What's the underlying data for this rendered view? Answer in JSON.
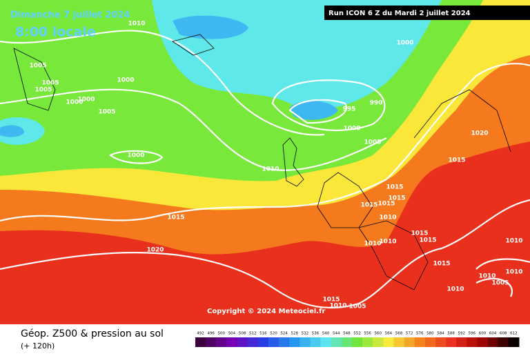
{
  "header": {
    "date": "Dimanche 7 juillet 2024",
    "time": "8:00 locale",
    "run": "Run ICON 6 Z du Mardi 2 juillet 2024"
  },
  "copyright": "Copyright © 2024 Meteociel.fr",
  "isobar_labels": [
    "1010",
    "1005",
    "1005",
    "1005",
    "1000",
    "1000",
    "1005",
    "1000",
    "1000",
    "1000",
    "995",
    "990",
    "1000",
    "1005",
    "1010",
    "1020",
    "1015",
    "1015",
    "1015",
    "1015",
    "1015",
    "1010",
    "1015",
    "1015",
    "1010",
    "1010",
    "1015",
    "1020",
    "1015",
    "1010",
    "1010",
    "1010",
    "1005",
    "1010",
    "1015",
    "1010",
    "1005"
  ],
  "footer": {
    "title": "Géop. Z500 & pression au sol",
    "subtitle": "(+ 120h)"
  },
  "legend": {
    "values": [
      492,
      496,
      500,
      504,
      508,
      512,
      516,
      520,
      524,
      528,
      532,
      536,
      540,
      544,
      548,
      552,
      556,
      560,
      564,
      568,
      572,
      576,
      580,
      584,
      588,
      592,
      596,
      600,
      604,
      608,
      612
    ]
  }
}
